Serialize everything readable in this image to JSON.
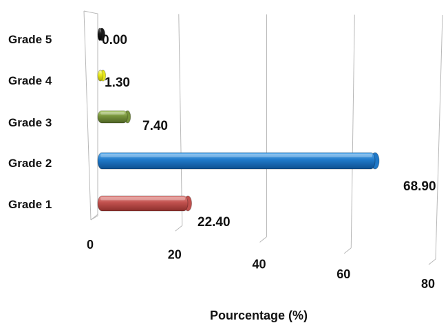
{
  "chart_data": {
    "type": "bar",
    "orientation": "horizontal",
    "three_d": true,
    "categories": [
      "Grade 1",
      "Grade 2",
      "Grade 3",
      "Grade 4",
      "Grade 5"
    ],
    "values": [
      22.4,
      68.9,
      7.4,
      1.3,
      0.0
    ],
    "value_labels": [
      "22.40",
      "68.90",
      "7.40",
      "1.30",
      "0.00"
    ],
    "colors": [
      "#c0504d",
      "#1f78c8",
      "#77933c",
      "#e8e81a",
      "#1a1a1a"
    ],
    "title": "",
    "xlabel": "Pourcentage (%)",
    "ylabel": "",
    "xlim": [
      0,
      80
    ],
    "xticks": [
      "0",
      "20",
      "40",
      "60",
      "80"
    ],
    "grid": "vertical",
    "legend": "none"
  }
}
